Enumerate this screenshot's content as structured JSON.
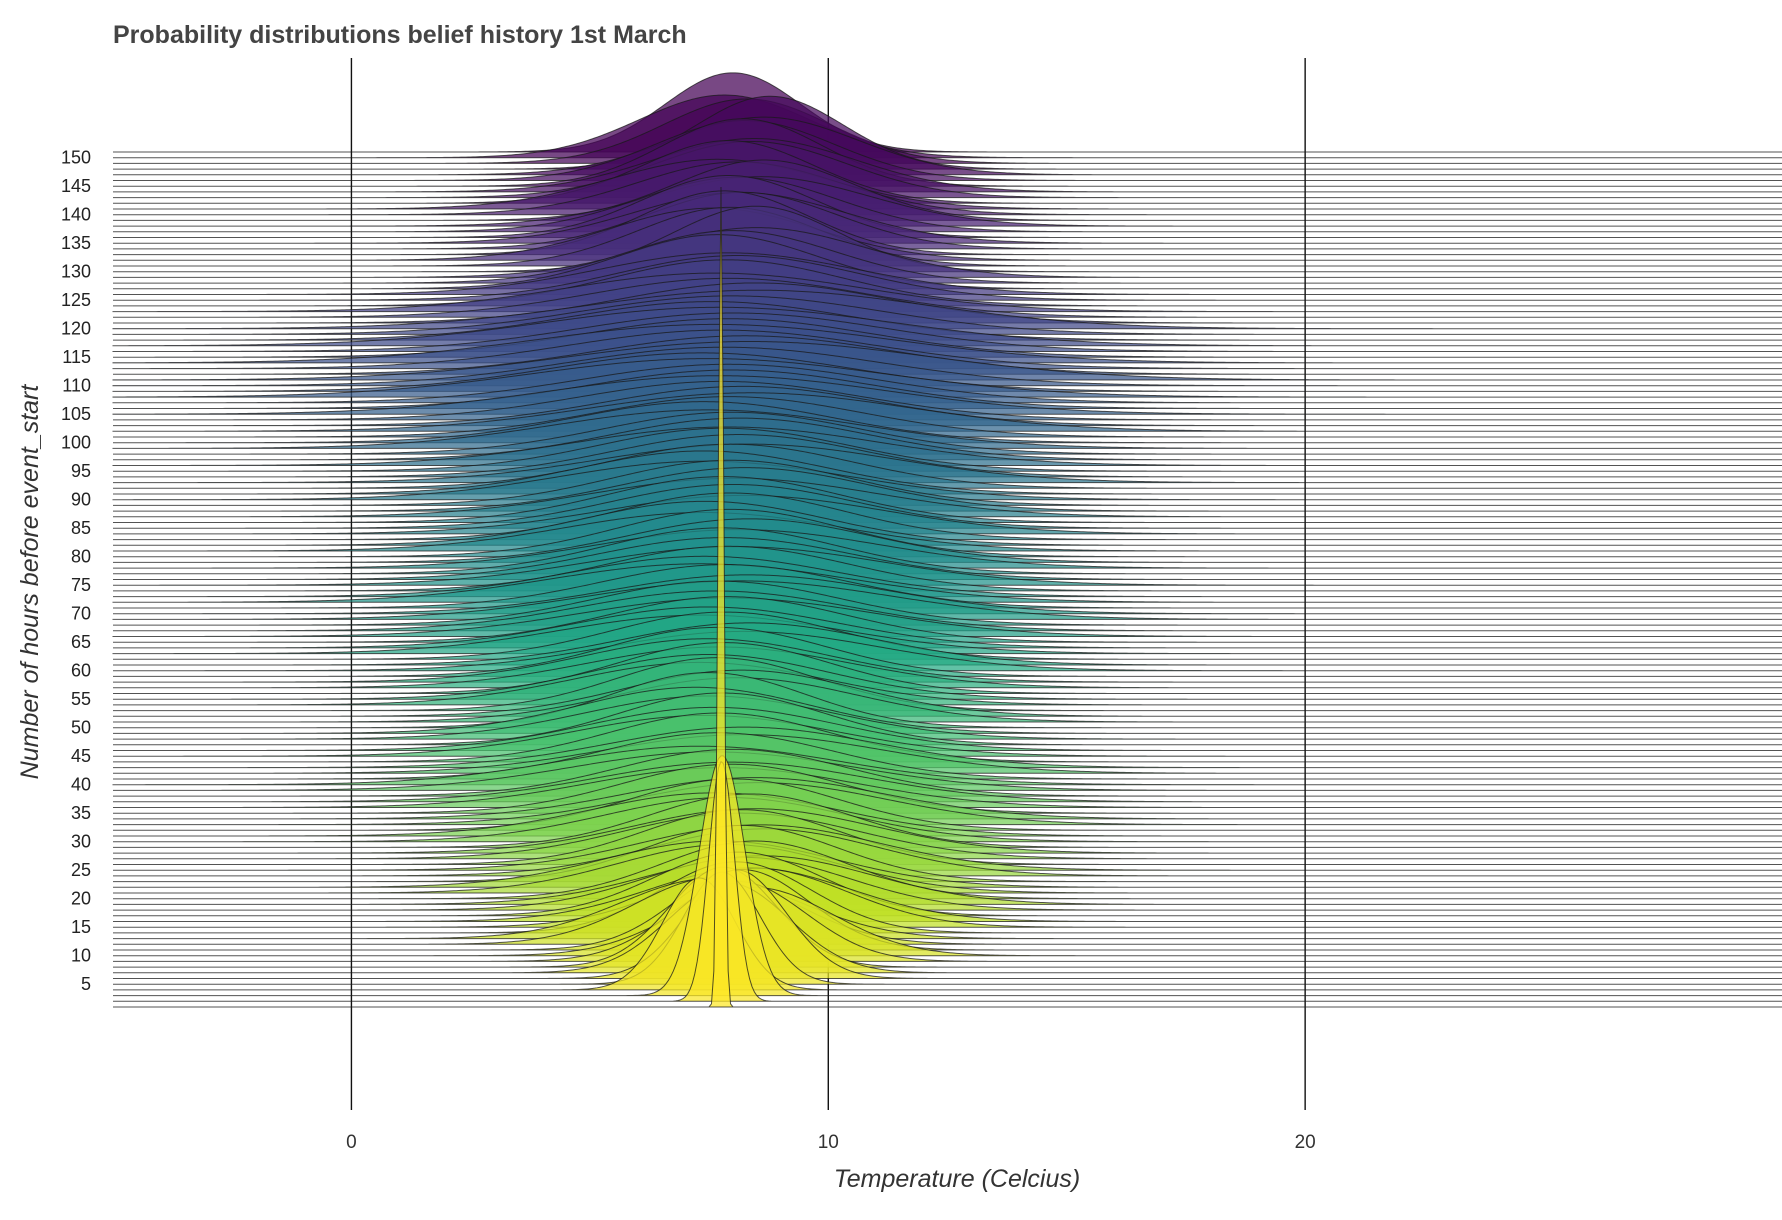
{
  "chart_data": {
    "type": "ridgeline",
    "title": "Probability distributions belief history 1st March",
    "xlabel": "Temperature (Celcius)",
    "ylabel": "Number of hours before event_start",
    "xlim": [
      -5,
      30
    ],
    "x_ticks": [
      0,
      10,
      20
    ],
    "x_tick_labels": [
      "0",
      "10",
      "20"
    ],
    "y_ticks": [
      5,
      10,
      15,
      20,
      25,
      30,
      35,
      40,
      45,
      50,
      55,
      60,
      65,
      70,
      75,
      80,
      85,
      90,
      95,
      100,
      105,
      110,
      115,
      120,
      125,
      130,
      135,
      140,
      145,
      150
    ],
    "y_tick_labels": [
      "5",
      "10",
      "15",
      "20",
      "25",
      "30",
      "35",
      "40",
      "45",
      "50",
      "55",
      "60",
      "65",
      "70",
      "75",
      "80",
      "85",
      "90",
      "95",
      "100",
      "105",
      "110",
      "115",
      "120",
      "125",
      "130",
      "135",
      "140",
      "145",
      "150"
    ],
    "hours_range": [
      1,
      151
    ],
    "colormap": [
      "#440154",
      "#482475",
      "#414487",
      "#355f8d",
      "#2a788e",
      "#21918c",
      "#22a884",
      "#44bf70",
      "#7ad151",
      "#bddf26",
      "#fde725"
    ],
    "grid": "vertical lines at major x ticks",
    "legend": "none",
    "density_profiles": [
      {
        "hours": 151,
        "mean": 8.4,
        "sd": 1.6
      },
      {
        "hours": 140,
        "mean": 8.2,
        "sd": 2.1
      },
      {
        "hours": 130,
        "mean": 8.0,
        "sd": 1.9
      },
      {
        "hours": 120,
        "mean": 8.0,
        "sd": 3.2
      },
      {
        "hours": 110,
        "mean": 7.8,
        "sd": 3.4
      },
      {
        "hours": 100,
        "mean": 7.9,
        "sd": 2.9
      },
      {
        "hours": 90,
        "mean": 7.9,
        "sd": 2.7
      },
      {
        "hours": 80,
        "mean": 7.9,
        "sd": 2.6
      },
      {
        "hours": 70,
        "mean": 7.8,
        "sd": 2.9
      },
      {
        "hours": 60,
        "mean": 7.8,
        "sd": 2.6
      },
      {
        "hours": 50,
        "mean": 7.6,
        "sd": 2.3
      },
      {
        "hours": 40,
        "mean": 7.8,
        "sd": 2.8
      },
      {
        "hours": 30,
        "mean": 8.2,
        "sd": 2.4
      },
      {
        "hours": 20,
        "mean": 8.3,
        "sd": 2.2
      },
      {
        "hours": 10,
        "mean": 8.0,
        "sd": 1.5
      },
      {
        "hours": 5,
        "mean": 7.8,
        "sd": 0.9
      },
      {
        "hours": 1,
        "mean": 7.75,
        "sd": 0.06
      }
    ]
  }
}
